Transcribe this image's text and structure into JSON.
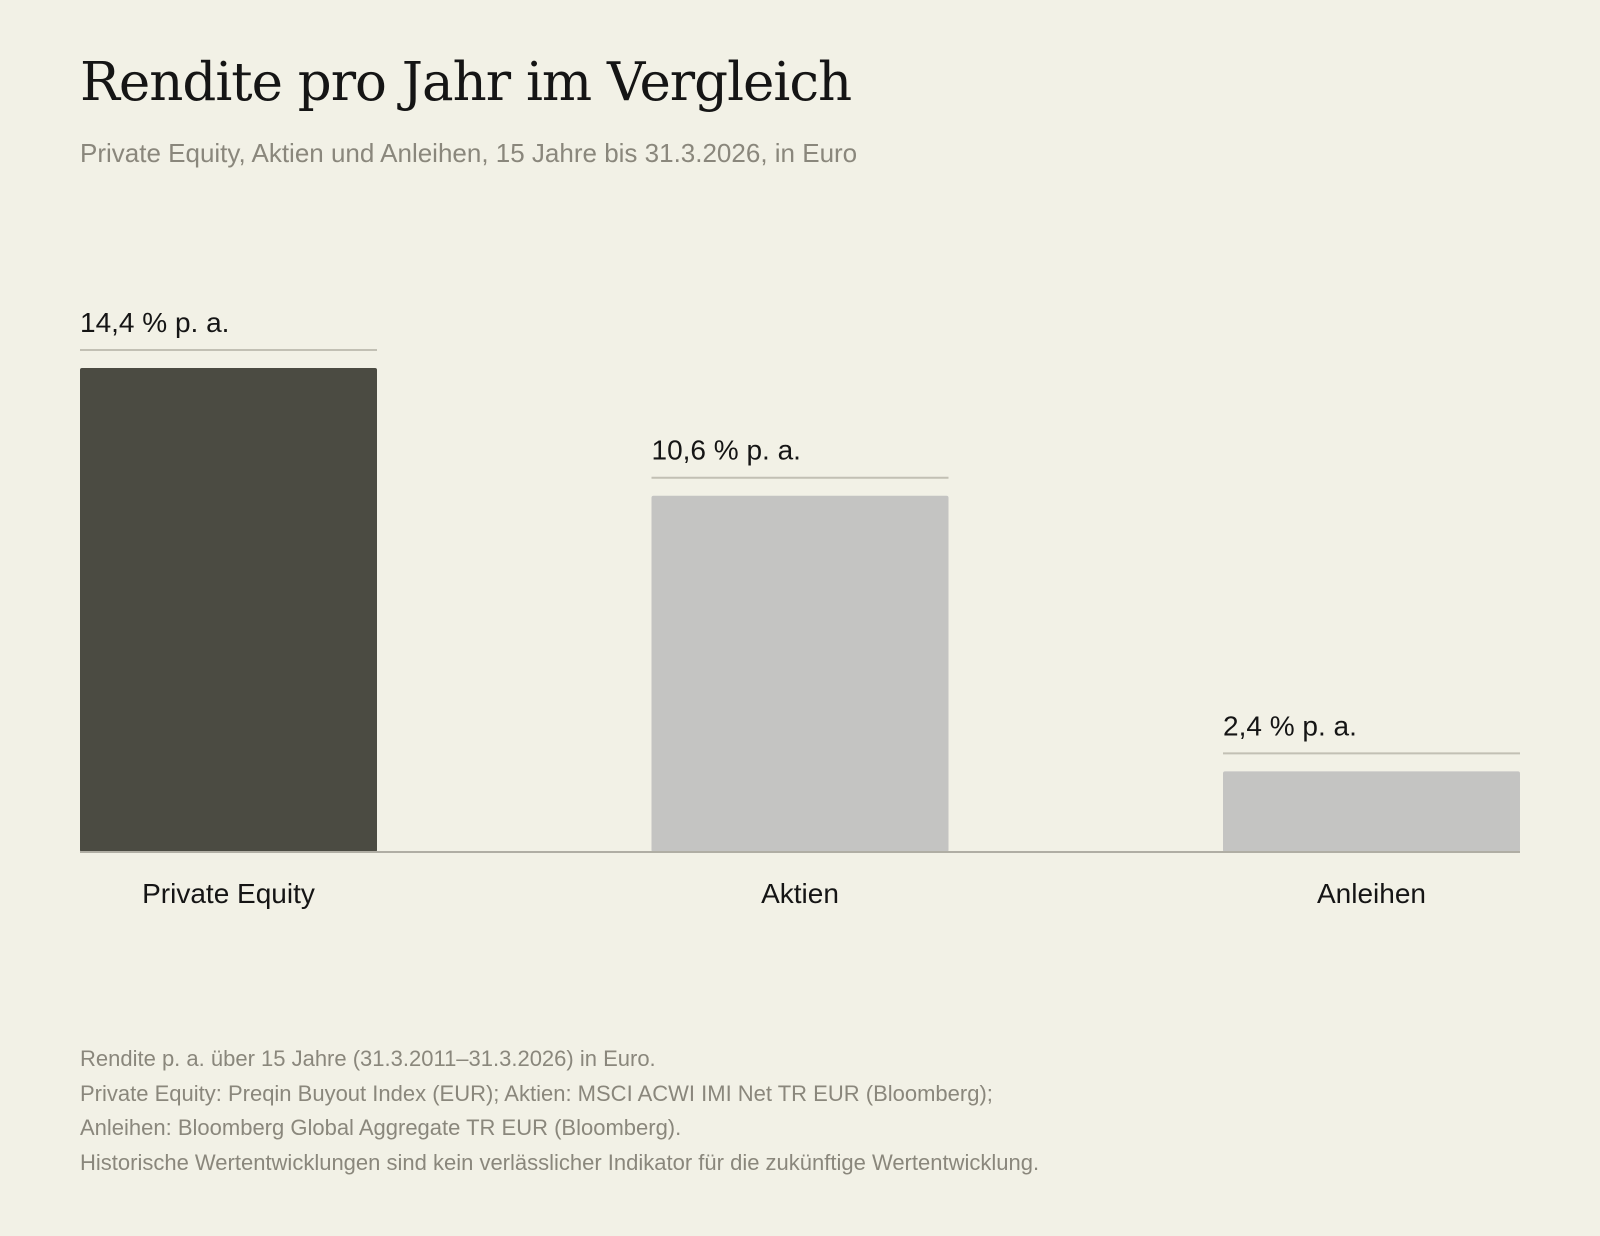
{
  "header": {
    "title": "Rendite pro Jahr im Vergleich",
    "subtitle": "Private Equity, Aktien und Anleihen, 15 Jahre bis 31.3.2026, in Euro"
  },
  "chart_data": {
    "type": "bar",
    "categories": [
      "Private Equity",
      "Aktien",
      "Anleihen"
    ],
    "values": [
      14.4,
      10.6,
      2.4
    ],
    "value_labels": [
      "14,4 % p. a.",
      "10,6 % p. a.",
      "2,4 % p. a."
    ],
    "colors": [
      "#4b4b42",
      "#c4c4c2",
      "#c4c4c2"
    ],
    "title": "Rendite pro Jahr im Vergleich",
    "xlabel": "",
    "ylabel": "",
    "ylim": [
      0,
      14.4
    ],
    "grid": false,
    "legend": "none"
  },
  "footnotes": [
    "Rendite p. a. über 15 Jahre (31.3.2011–31.3.2026) in Euro.",
    "Private Equity: Preqin Buyout Index (EUR); Aktien: MSCI ACWI IMI Net TR EUR (Bloomberg);",
    "Anleihen: Bloomberg Global Aggregate TR EUR (Bloomberg).",
    "Historische Wertentwicklungen sind kein verlässlicher Indikator für die zukünftige Wertentwicklung."
  ]
}
